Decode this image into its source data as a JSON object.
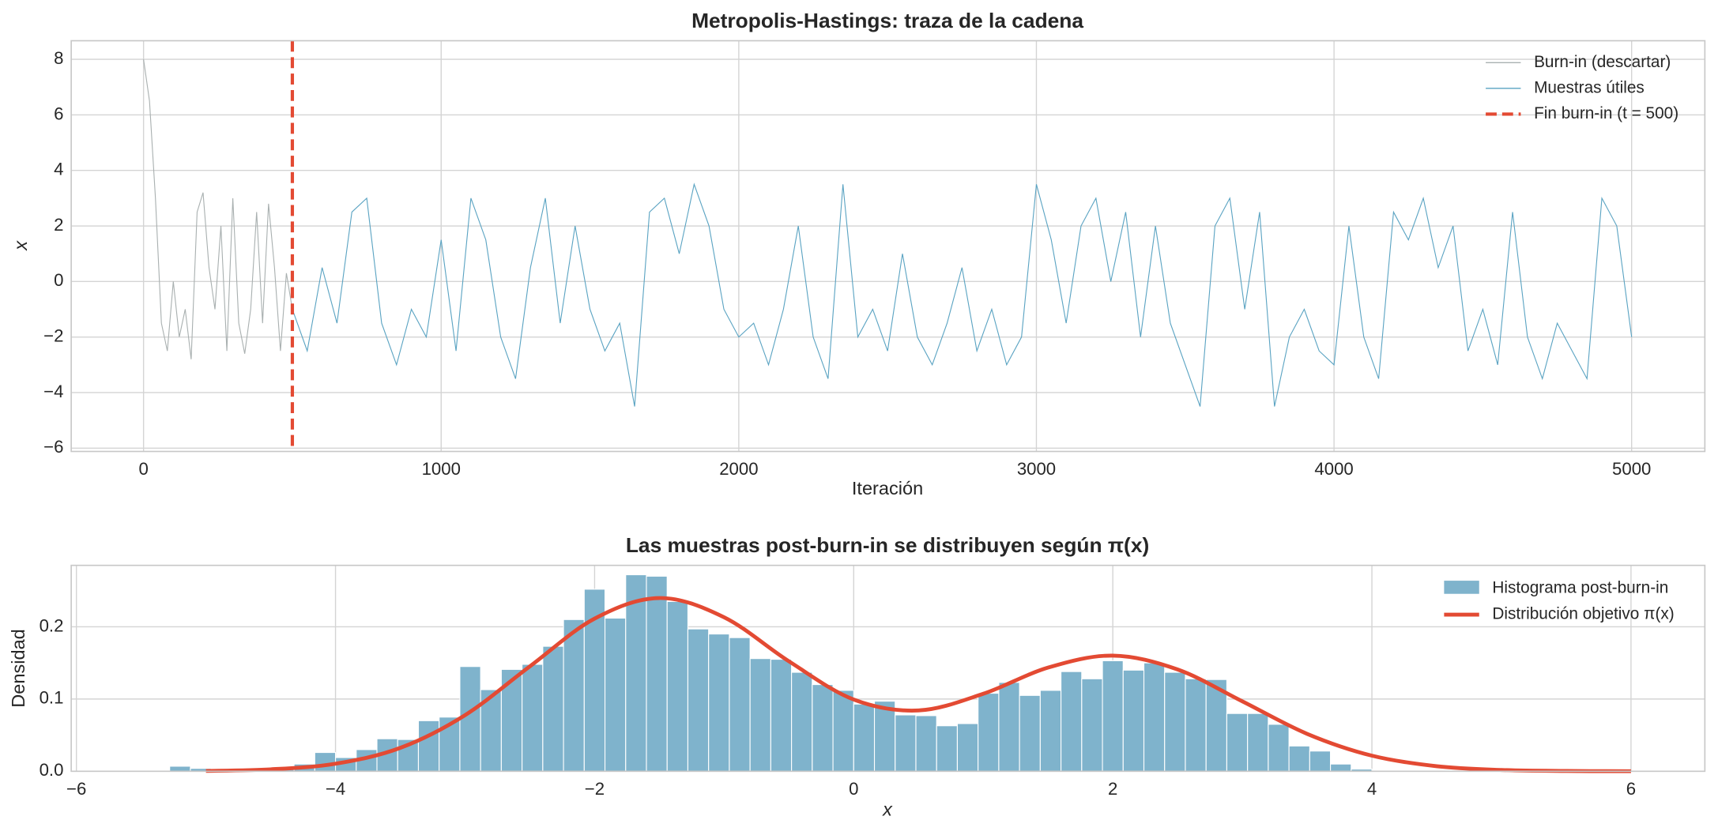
{
  "chart_data": [
    {
      "type": "line",
      "title": "Metropolis-Hastings: traza de la cadena",
      "x_label": "Iteración",
      "y_label": "x",
      "xlim": [
        -243,
        5246
      ],
      "ylim": [
        -6.12,
        8.67
      ],
      "xticks": [
        0,
        1000,
        2000,
        3000,
        4000,
        5000
      ],
      "yticks": [
        {
          "value": -6,
          "label": "−6"
        },
        {
          "value": -4,
          "label": "−4"
        },
        {
          "value": -2,
          "label": "−2"
        },
        0,
        2,
        4,
        6,
        8
      ],
      "grid": true,
      "legend": "upper right",
      "series": [
        {
          "name": "Burn-in (descartar)",
          "color": "#a9b0b0",
          "x": [
            0,
            20,
            40,
            60,
            80,
            100,
            120,
            140,
            160,
            180,
            200,
            220,
            240,
            260,
            280,
            300,
            320,
            340,
            360,
            380,
            400,
            420,
            440,
            460,
            480,
            500
          ],
          "values": [
            8.0,
            6.5,
            3.0,
            -1.5,
            -2.5,
            0,
            -2.0,
            -1.0,
            -2.8,
            2.5,
            3.2,
            0.5,
            -1.0,
            2.0,
            -2.5,
            3.0,
            -1.5,
            -2.6,
            -1.0,
            2.5,
            -1.5,
            2.8,
            0.5,
            -2.5,
            0.3,
            -1.0
          ]
        },
        {
          "name": "Muestras útiles",
          "color": "#5aa3c2",
          "x": [
            500,
            550,
            600,
            650,
            700,
            750,
            800,
            850,
            900,
            950,
            1000,
            1050,
            1100,
            1150,
            1200,
            1250,
            1300,
            1350,
            1400,
            1450,
            1500,
            1550,
            1600,
            1650,
            1700,
            1750,
            1800,
            1850,
            1900,
            1950,
            2000,
            2050,
            2100,
            2150,
            2200,
            2250,
            2300,
            2350,
            2400,
            2450,
            2500,
            2550,
            2600,
            2650,
            2700,
            2750,
            2800,
            2850,
            2900,
            2950,
            3000,
            3050,
            3100,
            3150,
            3200,
            3250,
            3300,
            3350,
            3400,
            3450,
            3500,
            3550,
            3600,
            3650,
            3700,
            3750,
            3800,
            3850,
            3900,
            3950,
            4000,
            4050,
            4100,
            4150,
            4200,
            4250,
            4300,
            4350,
            4400,
            4450,
            4500,
            4550,
            4600,
            4650,
            4700,
            4750,
            4800,
            4850,
            4900,
            4950,
            5000
          ],
          "values": [
            -1.0,
            -2.5,
            0.5,
            -1.5,
            2.5,
            3.0,
            -1.5,
            -3.0,
            -1.0,
            -2.0,
            1.5,
            -2.5,
            3.0,
            1.5,
            -2.0,
            -3.5,
            0.5,
            3.0,
            -1.5,
            2.0,
            -1.0,
            -2.5,
            -1.5,
            -4.5,
            2.5,
            3.0,
            1.0,
            3.5,
            2.0,
            -1.0,
            -2.0,
            -1.5,
            -3.0,
            -1.0,
            2.0,
            -2.0,
            -3.5,
            3.5,
            -2.0,
            -1.0,
            -2.5,
            1.0,
            -2.0,
            -3.0,
            -1.5,
            0.5,
            -2.5,
            -1.0,
            -3.0,
            -2.0,
            3.5,
            1.5,
            -1.5,
            2.0,
            3.0,
            0.0,
            2.5,
            -2.0,
            2.0,
            -1.5,
            -3.0,
            -4.5,
            2.0,
            3.0,
            -1.0,
            2.5,
            -4.5,
            -2.0,
            -1.0,
            -2.5,
            -3.0,
            2.0,
            -2.0,
            -3.5,
            2.5,
            1.5,
            3.0,
            0.5,
            2.0,
            -2.5,
            -1.0,
            -3.0,
            2.5,
            -2.0,
            -3.5,
            -1.5,
            -2.5,
            -3.5,
            3.0,
            2.0,
            -2.0
          ]
        }
      ],
      "vline": {
        "x": 500,
        "name": "Fin burn-in (t = 500)",
        "color": "#e34a33"
      }
    },
    {
      "type": "histogram",
      "title": "Las muestras post-burn-in se distribuyen según π(x)",
      "x_label": "x",
      "y_label": "Densidad",
      "xlim": [
        -6.04,
        6.57
      ],
      "ylim": [
        0,
        0.285
      ],
      "xticks": [
        {
          "value": -6,
          "label": "−6"
        },
        {
          "value": -4,
          "label": "−4"
        },
        {
          "value": -2,
          "label": "−2"
        },
        0,
        2,
        4,
        6
      ],
      "yticks": [
        {
          "value": 0,
          "label": "0.0"
        },
        {
          "value": 0.1,
          "label": "0.1"
        },
        {
          "value": 0.2,
          "label": "0.2"
        }
      ],
      "grid": true,
      "legend": "upper right",
      "hist_name": "Histograma post-burn-in",
      "hist_color": "#7fb3cc",
      "bins": [
        -5.44,
        -5.28,
        -5.12,
        -4.96,
        -4.8,
        -4.64,
        -4.48,
        -4.32,
        -4.16,
        -4.0,
        -3.84,
        -3.68,
        -3.52,
        -3.36,
        -3.2,
        -3.04,
        -2.88,
        -2.72,
        -2.56,
        -2.4,
        -2.24,
        -2.08,
        -1.92,
        -1.76,
        -1.6,
        -1.44,
        -1.28,
        -1.12,
        -0.96,
        -0.8,
        -0.64,
        -0.48,
        -0.32,
        -0.16,
        0,
        0.16,
        0.32,
        0.48,
        0.64,
        0.8,
        0.96,
        1.12,
        1.28,
        1.44,
        1.6,
        1.76,
        1.92,
        2.08,
        2.24,
        2.4,
        2.56,
        2.72,
        2.88,
        3.04,
        3.2,
        3.36,
        3.52,
        3.68,
        3.84,
        4.0,
        4.16
      ],
      "counts": [
        0.001,
        0.007,
        0.004,
        0.002,
        0.004,
        0.0,
        0.006,
        0.01,
        0.026,
        0.019,
        0.03,
        0.045,
        0.044,
        0.07,
        0.075,
        0.145,
        0.113,
        0.141,
        0.148,
        0.173,
        0.21,
        0.252,
        0.212,
        0.272,
        0.27,
        0.235,
        0.197,
        0.19,
        0.185,
        0.156,
        0.155,
        0.137,
        0.12,
        0.112,
        0.093,
        0.097,
        0.078,
        0.077,
        0.063,
        0.066,
        0.108,
        0.123,
        0.105,
        0.112,
        0.138,
        0.128,
        0.153,
        0.14,
        0.15,
        0.137,
        0.128,
        0.127,
        0.08,
        0.08,
        0.065,
        0.035,
        0.028,
        0.01,
        0.003,
        0.001
      ],
      "curve": {
        "name": "Distribución objetivo π(x)",
        "color": "#e34a33",
        "x": [
          -5,
          -4.5,
          -4,
          -3.5,
          -3,
          -2.5,
          -2,
          -1.5,
          -1,
          -0.5,
          0,
          0.5,
          1,
          1.5,
          2,
          2.5,
          3,
          3.5,
          4,
          4.5,
          5,
          5.5,
          6
        ],
        "values": [
          0.0005,
          0.0027,
          0.0105,
          0.0324,
          0.0777,
          0.1452,
          0.2113,
          0.2398,
          0.2131,
          0.1522,
          0.0993,
          0.0842,
          0.1073,
          0.1435,
          0.1601,
          0.1409,
          0.0968,
          0.0518,
          0.0216,
          0.007,
          0.0018,
          0.0004,
          0.0001
        ]
      }
    }
  ]
}
